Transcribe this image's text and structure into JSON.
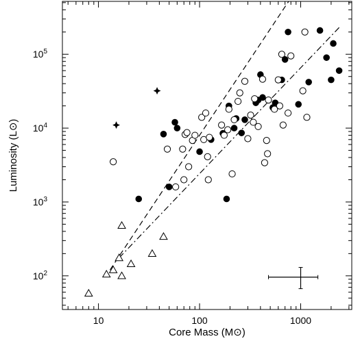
{
  "chart_data": {
    "type": "scatter",
    "title": "",
    "xlabel": "Core Mass (M⊙)",
    "ylabel": "Luminosity (L⊙)",
    "xscale": "log",
    "yscale": "log",
    "xlim": [
      4.4,
      3200
    ],
    "ylim": [
      35,
      520000
    ],
    "xticks": [
      {
        "value": 10,
        "label": "10"
      },
      {
        "value": 100,
        "label": "100"
      },
      {
        "value": 1000,
        "label": "1000"
      }
    ],
    "yticks": [
      {
        "value": 100,
        "base": "10",
        "exp": "2"
      },
      {
        "value": 1000,
        "base": "10",
        "exp": "3"
      },
      {
        "value": 10000,
        "base": "10",
        "exp": "4"
      },
      {
        "value": 100000,
        "base": "10",
        "exp": "5"
      }
    ],
    "grid": false,
    "series": [
      {
        "marker": "filled-circle",
        "points": [
          [
            25,
            1100
          ],
          [
            44,
            8300
          ],
          [
            50,
            1600
          ],
          [
            57,
            12000
          ],
          [
            60,
            10000
          ],
          [
            100,
            4800
          ],
          [
            130,
            7000
          ],
          [
            170,
            8500
          ],
          [
            185,
            1100
          ],
          [
            195,
            20000
          ],
          [
            220,
            10000
          ],
          [
            230,
            13500
          ],
          [
            260,
            8600
          ],
          [
            280,
            13000
          ],
          [
            360,
            22000
          ],
          [
            380,
            24000
          ],
          [
            400,
            53000
          ],
          [
            420,
            26000
          ],
          [
            530,
            19000
          ],
          [
            560,
            22000
          ],
          [
            650,
            45000
          ],
          [
            700,
            85000
          ],
          [
            750,
            200000
          ],
          [
            950,
            21000
          ],
          [
            1200,
            42000
          ],
          [
            1550,
            210000
          ],
          [
            1800,
            90000
          ],
          [
            2000,
            45000
          ],
          [
            2100,
            140000
          ],
          [
            2400,
            60000
          ]
        ]
      },
      {
        "marker": "open-circle",
        "points": [
          [
            14,
            3500
          ],
          [
            48,
            5200
          ],
          [
            58,
            1600
          ],
          [
            68,
            5200
          ],
          [
            70,
            2000
          ],
          [
            72,
            8200
          ],
          [
            75,
            8700
          ],
          [
            78,
            3000
          ],
          [
            85,
            6800
          ],
          [
            90,
            8000
          ],
          [
            105,
            14000
          ],
          [
            110,
            7000
          ],
          [
            115,
            16000
          ],
          [
            120,
            4100
          ],
          [
            125,
            7500
          ],
          [
            122,
            2000
          ],
          [
            165,
            11000
          ],
          [
            175,
            8000
          ],
          [
            190,
            9500
          ],
          [
            195,
            18000
          ],
          [
            210,
            2400
          ],
          [
            220,
            13000
          ],
          [
            240,
            23000
          ],
          [
            250,
            30000
          ],
          [
            280,
            43000
          ],
          [
            300,
            7200
          ],
          [
            320,
            15000
          ],
          [
            340,
            12000
          ],
          [
            350,
            25000
          ],
          [
            380,
            10500
          ],
          [
            420,
            46000
          ],
          [
            440,
            3400
          ],
          [
            460,
            6800
          ],
          [
            470,
            4500
          ],
          [
            480,
            24000
          ],
          [
            550,
            18000
          ],
          [
            600,
            45000
          ],
          [
            620,
            20000
          ],
          [
            650,
            100000
          ],
          [
            670,
            11000
          ],
          [
            750,
            16000
          ],
          [
            800,
            95000
          ],
          [
            1050,
            32000
          ],
          [
            1100,
            200000
          ],
          [
            1150,
            14000
          ]
        ]
      },
      {
        "marker": "open-triangle",
        "points": [
          [
            8,
            58
          ],
          [
            12,
            105
          ],
          [
            14,
            120
          ],
          [
            16,
            175
          ],
          [
            17,
            100
          ],
          [
            17,
            480
          ],
          [
            21,
            145
          ],
          [
            34,
            200
          ],
          [
            44,
            340
          ]
        ]
      },
      {
        "marker": "star",
        "points": [
          [
            15,
            11000
          ],
          [
            38,
            32000
          ]
        ]
      }
    ],
    "lines": [
      {
        "style": "dashed",
        "from": [
          13,
          120
        ],
        "to": [
          760,
          520000
        ]
      },
      {
        "style": "dash-dot",
        "from": [
          16,
          175
        ],
        "to": [
          2400,
          230000
        ]
      }
    ],
    "error_bar": {
      "x": 1000,
      "y": 96,
      "x_low": 480,
      "x_high": 1480,
      "y_low": 67,
      "y_high": 130
    }
  }
}
